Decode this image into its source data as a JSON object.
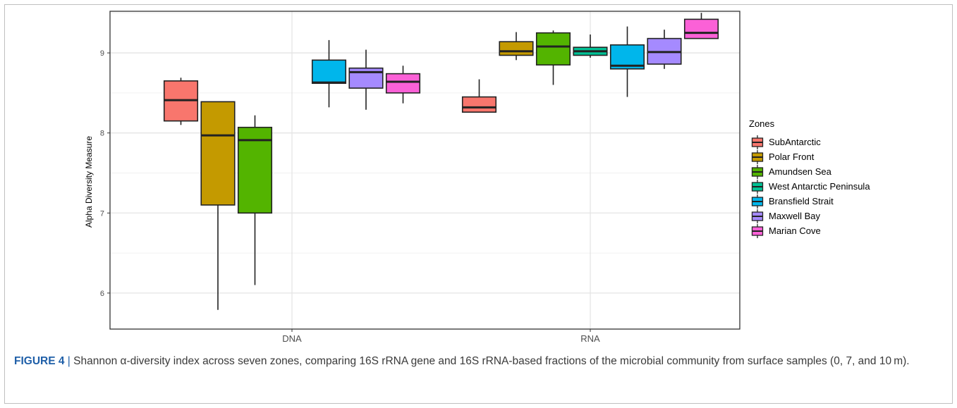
{
  "caption": {
    "label": "FIGURE 4",
    "separator": " | ",
    "text": "Shannon α-diversity index across seven zones, comparing 16S rRNA gene and 16S rRNA-based fractions of the microbial community from surface samples (0, 7, and 10 m)."
  },
  "chart_data": {
    "type": "boxplot",
    "ylabel": "Alpha Diversity Measure",
    "xlabel": "",
    "categories": [
      "DNA",
      "RNA"
    ],
    "ylim": [
      5.55,
      9.52
    ],
    "yticks": [
      6,
      7,
      8,
      9
    ],
    "grid": true,
    "legend": {
      "title": "Zones",
      "position": "right"
    },
    "series": [
      {
        "name": "SubAntarctic",
        "color": "#F8766D",
        "boxes": [
          {
            "category": "DNA",
            "whisker_low": 8.1,
            "q1": 8.15,
            "median": 8.41,
            "q3": 8.65,
            "whisker_high": 8.69
          },
          {
            "category": "RNA",
            "whisker_low": 8.26,
            "q1": 8.26,
            "median": 8.32,
            "q3": 8.45,
            "whisker_high": 8.67
          }
        ]
      },
      {
        "name": "Polar Front",
        "color": "#C49A00",
        "boxes": [
          {
            "category": "DNA",
            "whisker_low": 5.79,
            "q1": 7.1,
            "median": 7.97,
            "q3": 8.39,
            "whisker_high": 8.39
          },
          {
            "category": "RNA",
            "whisker_low": 8.91,
            "q1": 8.97,
            "median": 9.02,
            "q3": 9.14,
            "whisker_high": 9.26
          }
        ]
      },
      {
        "name": "Amundsen Sea",
        "color": "#53B400",
        "boxes": [
          {
            "category": "DNA",
            "whisker_low": 6.1,
            "q1": 7.0,
            "median": 7.91,
            "q3": 8.07,
            "whisker_high": 8.22
          },
          {
            "category": "RNA",
            "whisker_low": 8.6,
            "q1": 8.85,
            "median": 9.08,
            "q3": 9.25,
            "whisker_high": 9.28
          }
        ]
      },
      {
        "name": "West Antarctic Peninsula",
        "color": "#00C094",
        "boxes": [
          {
            "category": "RNA",
            "whisker_low": 8.94,
            "q1": 8.97,
            "median": 9.02,
            "q3": 9.07,
            "whisker_high": 9.23
          }
        ]
      },
      {
        "name": "Bransfield Strait",
        "color": "#00B6EB",
        "boxes": [
          {
            "category": "DNA",
            "whisker_low": 8.32,
            "q1": 8.62,
            "median": 8.63,
            "q3": 8.91,
            "whisker_high": 9.16
          },
          {
            "category": "RNA",
            "whisker_low": 8.45,
            "q1": 8.8,
            "median": 8.84,
            "q3": 9.1,
            "whisker_high": 9.33
          }
        ]
      },
      {
        "name": "Maxwell Bay",
        "color": "#A58AFF",
        "boxes": [
          {
            "category": "DNA",
            "whisker_low": 8.29,
            "q1": 8.56,
            "median": 8.76,
            "q3": 8.81,
            "whisker_high": 9.04
          },
          {
            "category": "RNA",
            "whisker_low": 8.8,
            "q1": 8.86,
            "median": 9.01,
            "q3": 9.18,
            "whisker_high": 9.29
          }
        ]
      },
      {
        "name": "Marian Cove",
        "color": "#FB61D7",
        "boxes": [
          {
            "category": "DNA",
            "whisker_low": 8.37,
            "q1": 8.5,
            "median": 8.64,
            "q3": 8.74,
            "whisker_high": 8.84
          },
          {
            "category": "RNA",
            "whisker_low": 9.18,
            "q1": 9.18,
            "median": 9.25,
            "q3": 9.42,
            "whisker_high": 9.5
          }
        ]
      }
    ]
  }
}
